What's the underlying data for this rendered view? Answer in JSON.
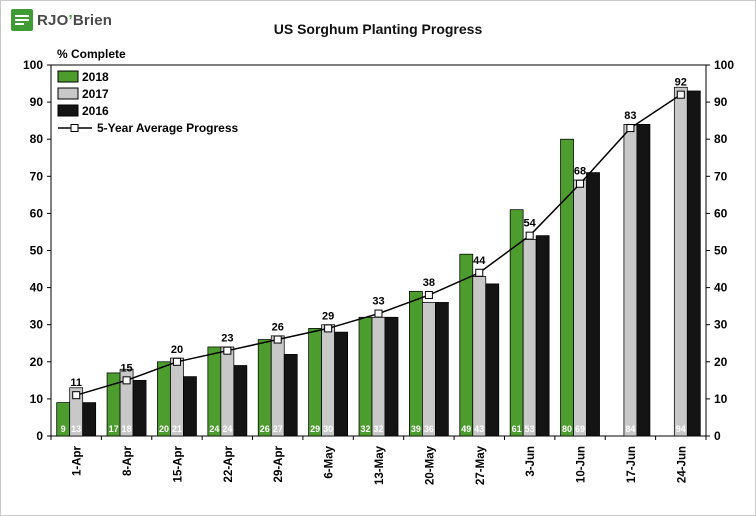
{
  "header": {
    "logo": {
      "main": "RJO",
      "apostrophe": "’",
      "rest": "Brien"
    },
    "title": "US Sorghum Planting Progress"
  },
  "chart_data": {
    "type": "bar",
    "title": "US Sorghum Planting Progress",
    "y_axis_label": "% Complete",
    "ylim": [
      0,
      100
    ],
    "ytick_step": 10,
    "grid": false,
    "legend_position": "top-left",
    "categories": [
      "1-Apr",
      "8-Apr",
      "15-Apr",
      "22-Apr",
      "29-Apr",
      "6-May",
      "13-May",
      "20-May",
      "27-May",
      "3-Jun",
      "10-Jun",
      "17-Jun",
      "24-Jun"
    ],
    "series": [
      {
        "name": "2018",
        "color": "#4c9c2e",
        "values": [
          9,
          17,
          20,
          24,
          26,
          29,
          32,
          39,
          49,
          61,
          80,
          null,
          null
        ],
        "labels": [
          9,
          17,
          20,
          24,
          26,
          29,
          32,
          39,
          49,
          61,
          80,
          null,
          null
        ]
      },
      {
        "name": "2017",
        "color": "#c8c8c8",
        "values": [
          13,
          18,
          21,
          24,
          27,
          30,
          32,
          36,
          43,
          53,
          69,
          84,
          94
        ],
        "labels": [
          13,
          18,
          21,
          24,
          27,
          30,
          32,
          36,
          43,
          53,
          69,
          84,
          94
        ]
      },
      {
        "name": "2016",
        "color": "#141414",
        "values": [
          9,
          15,
          16,
          19,
          22,
          28,
          32,
          36,
          41,
          54,
          71,
          84,
          93
        ]
      }
    ],
    "line": {
      "name": "5-Year Average Progress",
      "color": "#000000",
      "marker": "open-square",
      "values": [
        11,
        15,
        20,
        23,
        26,
        29,
        33,
        38,
        44,
        54,
        68,
        83,
        92
      ],
      "show_labels": true
    }
  }
}
